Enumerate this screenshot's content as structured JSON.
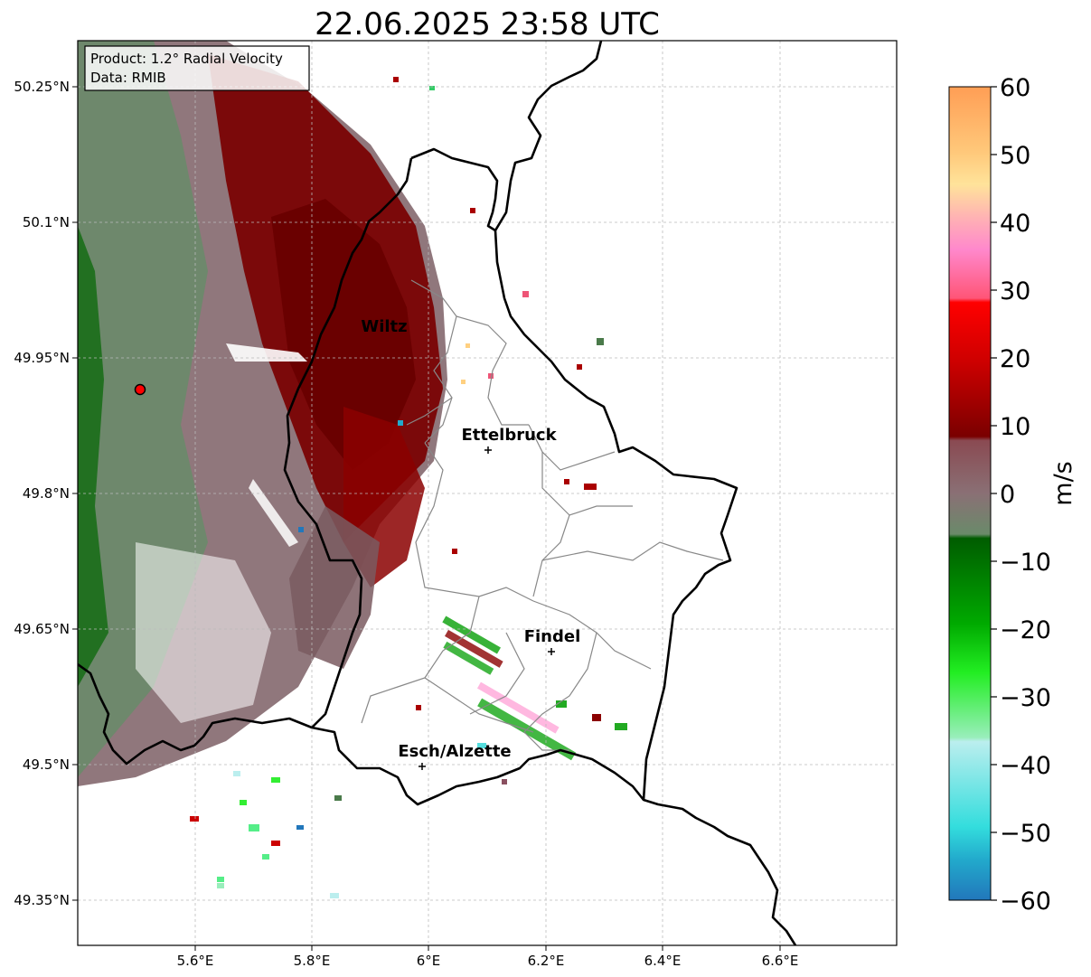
{
  "title": "22.06.2025 23:58 UTC",
  "info_box": {
    "line1": "Product: 1.2° Radial Velocity",
    "line2": "Data: RMIB"
  },
  "lat_ticks": [
    "50.25°N",
    "50.1°N",
    "49.95°N",
    "49.8°N",
    "49.65°N",
    "49.5°N",
    "49.35°N"
  ],
  "lon_ticks": [
    "5.6°E",
    "5.8°E",
    "6°E",
    "6.2°E",
    "6.4°E",
    "6.6°E"
  ],
  "cities": [
    {
      "name": "Wiltz"
    },
    {
      "name": "Ettelbruck"
    },
    {
      "name": "Findel"
    },
    {
      "name": "Esch/Alzette"
    }
  ],
  "colorbar": {
    "label": "m/s",
    "ticks": [
      "60",
      "50",
      "40",
      "30",
      "20",
      "10",
      "0",
      "−10",
      "−20",
      "−30",
      "−40",
      "−50",
      "−60"
    ],
    "range": [
      -60,
      60
    ]
  },
  "colors": {
    "strong_positive": "#8b0000",
    "positive": "#cc0000",
    "near_zero_pos": "#8a6a6e",
    "near_zero_neg": "#5e8060",
    "negative": "#008000",
    "strong_negative": "#22aa22",
    "radar_site": "#ff0000"
  }
}
